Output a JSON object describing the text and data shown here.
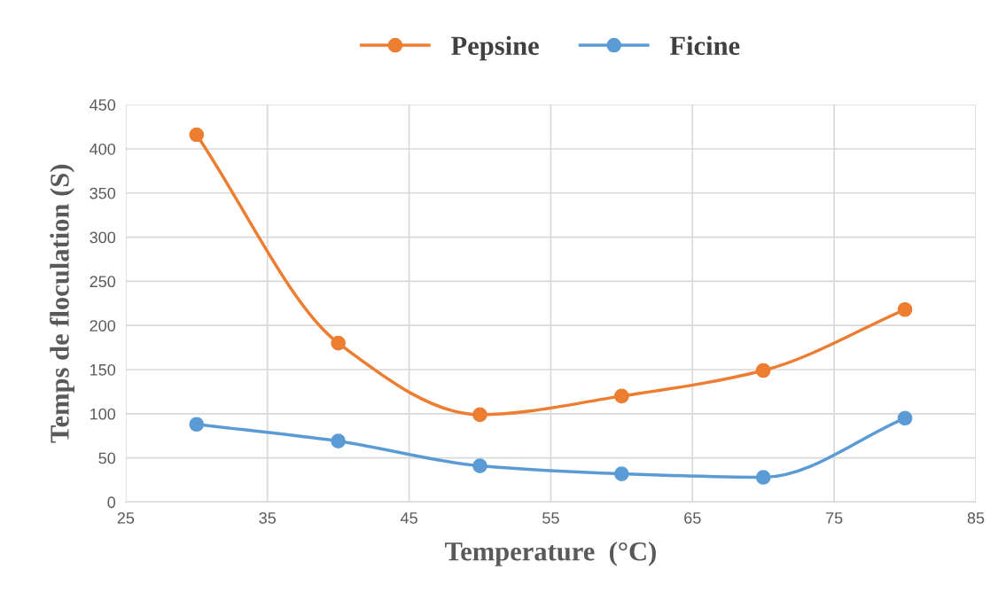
{
  "chart_data": {
    "type": "line",
    "xlabel": "Temperature  (°C)",
    "ylabel": "Temps de floculation (S)",
    "x": [
      30,
      40,
      50,
      60,
      70,
      80
    ],
    "series": [
      {
        "name": "Pepsine",
        "color": "#ed7d31",
        "values": [
          416,
          180,
          99,
          120,
          149,
          218
        ]
      },
      {
        "name": "Ficine",
        "color": "#5b9bd5",
        "values": [
          88,
          69,
          41,
          32,
          28,
          95
        ]
      }
    ],
    "xlim": [
      25,
      85
    ],
    "xticks": [
      25,
      35,
      45,
      55,
      65,
      75,
      85
    ],
    "ylim": [
      0,
      450
    ],
    "yticks": [
      0,
      50,
      100,
      150,
      200,
      250,
      300,
      350,
      400,
      450
    ],
    "grid": true,
    "legend": "top",
    "marker": "circle"
  }
}
